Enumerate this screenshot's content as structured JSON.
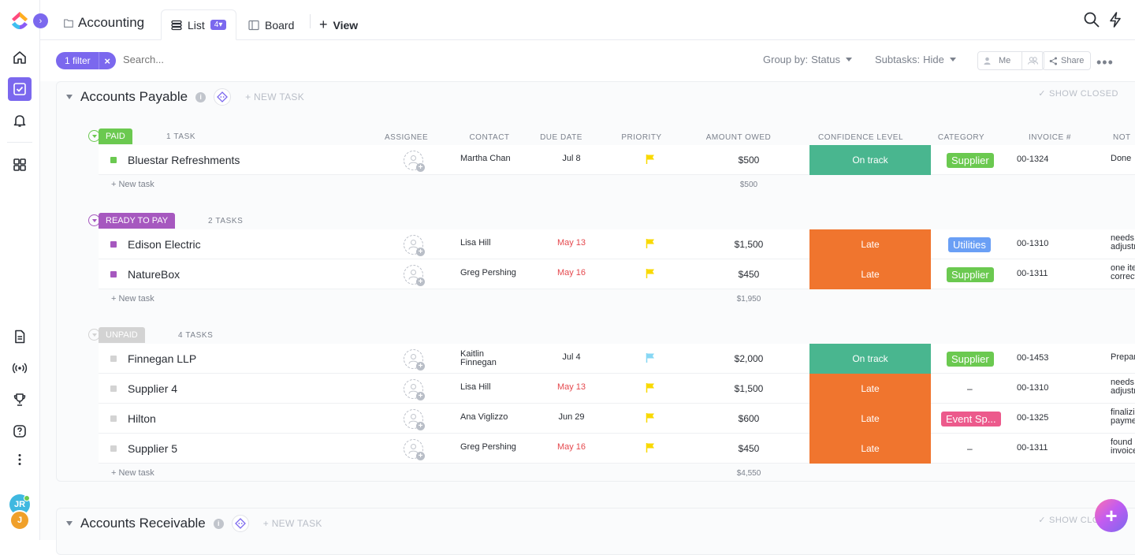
{
  "rail": {
    "avatars": [
      "JR",
      "J"
    ],
    "colors": {
      "accent": "#7b68ee",
      "avatar_jr": "#3fb8e0",
      "avatar_j": "#f0a02a"
    }
  },
  "header": {
    "breadcrumb": "Accounting",
    "tabs": {
      "list": "List",
      "list_count": "4",
      "board": "Board",
      "view": "View"
    }
  },
  "toolbar": {
    "filter_label": "1 filter",
    "search_placeholder": "Search...",
    "group_by_label": "Group by:",
    "group_by_value": "Status",
    "subtasks_label": "Subtasks:",
    "subtasks_value": "Hide",
    "me_label": "Me",
    "share_label": "Share"
  },
  "columns": {
    "assignee": "ASSIGNEE",
    "contact": "CONTACT",
    "due_date": "DUE DATE",
    "priority": "PRIORITY",
    "amount_owed": "AMOUNT OWED",
    "confidence_level": "CONFIDENCE LEVEL",
    "category": "CATEGORY",
    "invoice": "INVOICE #",
    "notes": "NOT"
  },
  "lists": {
    "payable": {
      "title": "Accounts Payable",
      "new_task": "+ NEW TASK",
      "show_closed": "SHOW CLOSED"
    },
    "receivable": {
      "title": "Accounts Receivable",
      "new_task": "+ NEW TASK",
      "show_closed": "SHOW CLOSED"
    }
  },
  "status_colors": {
    "paid": "#6bc950",
    "ready": "#a658bf",
    "unpaid": "#d3d3d3",
    "on_track": "#49b68f",
    "late": "#f0752e",
    "supplier": "#6bc950",
    "utilities": "#6a9ff5",
    "event": "#ec5a8c",
    "flag_yellow": "#f9d900",
    "flag_blue": "#87d7f4"
  },
  "groups": {
    "paid": {
      "label": "PAID",
      "count": "1 TASK",
      "new_task": "+ New task",
      "total": "$500",
      "rows": [
        {
          "name": "Bluestar Refreshments",
          "contact": "Martha Chan",
          "due": "Jul 8",
          "amount": "$500",
          "confidence": "On track",
          "category": "Supplier",
          "invoice": "00-1324",
          "notes": "Done"
        }
      ]
    },
    "ready": {
      "label": "READY TO PAY",
      "count": "2 TASKS",
      "new_task": "+ New task",
      "total": "$1,950",
      "rows": [
        {
          "name": "Edison Electric",
          "contact": "Lisa Hill",
          "due": "May 13",
          "amount": "$1,500",
          "confidence": "Late",
          "category": "Utilities",
          "invoice": "00-1310",
          "notes": "needs adjustme"
        },
        {
          "name": "NatureBox",
          "contact": "Greg Pershing",
          "due": "May 16",
          "amount": "$450",
          "confidence": "Late",
          "category": "Supplier",
          "invoice": "00-1311",
          "notes": "one item correct"
        }
      ]
    },
    "unpaid": {
      "label": "UNPAID",
      "count": "4 TASKS",
      "new_task": "+ New task",
      "total": "$4,550",
      "rows": [
        {
          "name": "Finnegan LLP",
          "contact": "Kaitlin Finnegan",
          "due": "Jul 4",
          "amount": "$2,000",
          "confidence": "On track",
          "category": "Supplier",
          "invoice": "00-1453",
          "notes": "Preparin"
        },
        {
          "name": "Supplier 4",
          "contact": "Lisa Hill",
          "due": "May 13",
          "amount": "$1,500",
          "confidence": "Late",
          "category": "–",
          "invoice": "00-1310",
          "notes": "needs adjustme"
        },
        {
          "name": "Hilton",
          "contact": "Ana Viglizzo",
          "due": "Jun 29",
          "amount": "$600",
          "confidence": "Late",
          "category": "Event Sp...",
          "invoice": "00-1325",
          "notes": "finalizing payment"
        },
        {
          "name": "Supplier 5",
          "contact": "Greg Pershing",
          "due": "May 16",
          "amount": "$450",
          "confidence": "Late",
          "category": "–",
          "invoice": "00-1311",
          "notes": "found er invoice"
        }
      ]
    }
  }
}
